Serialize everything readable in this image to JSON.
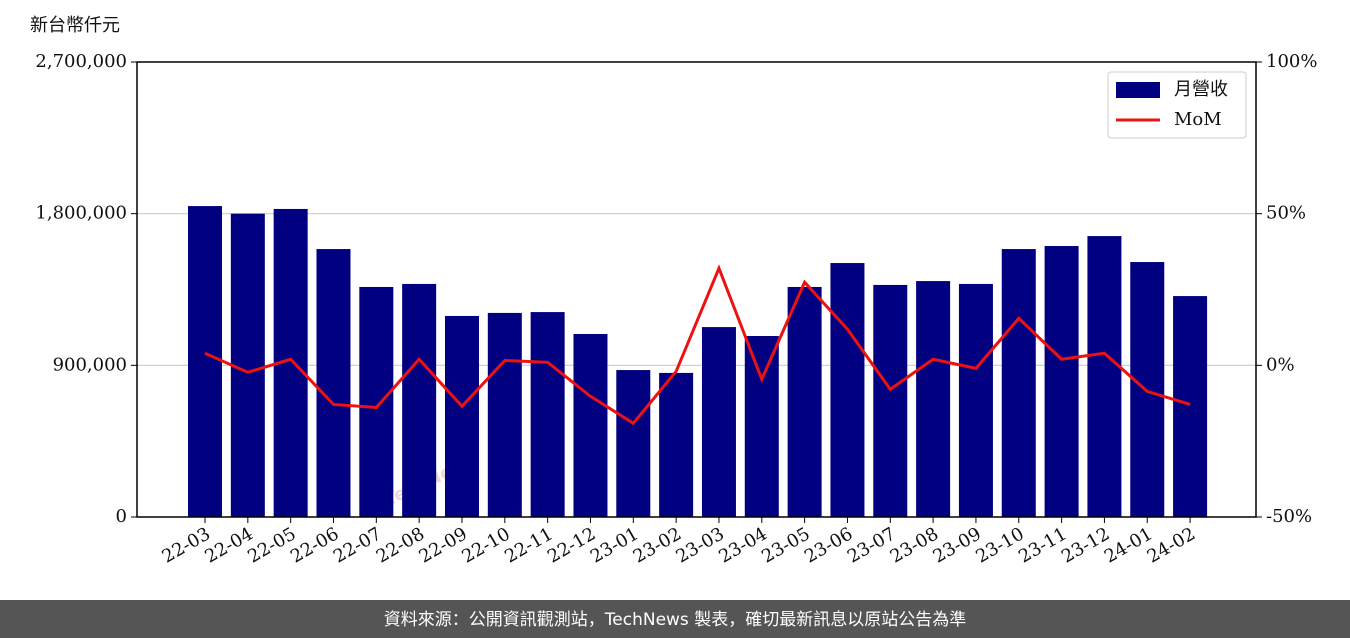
{
  "chart_data": {
    "type": "combo",
    "unit_label": "新台幣仟元",
    "watermark": "TechNews",
    "footer": "資料來源：公開資訊觀測站，TechNews 製表，確切最新訊息以原站公告為準",
    "categories": [
      "22-03",
      "22-04",
      "22-05",
      "22-06",
      "22-07",
      "22-08",
      "22-09",
      "22-10",
      "22-11",
      "22-12",
      "23-01",
      "23-02",
      "23-03",
      "23-04",
      "23-05",
      "23-06",
      "23-07",
      "23-08",
      "23-09",
      "23-10",
      "23-11",
      "23-12",
      "24-01",
      "24-02"
    ],
    "series": [
      {
        "name": "月營收",
        "type": "bar",
        "color": "#000080",
        "axis": "y",
        "values": [
          1845000,
          1800000,
          1828000,
          1590000,
          1365000,
          1383000,
          1193000,
          1211000,
          1216000,
          1086000,
          872000,
          855000,
          1127000,
          1074000,
          1365000,
          1507000,
          1377000,
          1400000,
          1383000,
          1590000,
          1608000,
          1667000,
          1513000,
          1311000
        ]
      },
      {
        "name": "MoM",
        "type": "line",
        "color": "#ee1111",
        "axis": "y2",
        "values": [
          4,
          -2.3,
          2,
          -12.9,
          -13.9,
          2,
          -13.5,
          1.6,
          1,
          -10.2,
          -19.1,
          -2,
          32,
          -4.6,
          27.4,
          11.9,
          -7.9,
          2,
          -1,
          15.5,
          2,
          4,
          -8.6,
          -12.9
        ]
      }
    ],
    "ylim": [
      0,
      2700000
    ],
    "yticks": [
      0,
      {
        "value": 900000,
        "label": "900,000"
      },
      {
        "value": 1800000,
        "label": "1,800,000"
      },
      {
        "value": 2700000,
        "label": "2,700,000"
      }
    ],
    "y2lim": [
      -50,
      100
    ],
    "y2ticks": [
      {
        "value": -50,
        "label": "-50%"
      },
      {
        "value": 0,
        "label": "0%"
      },
      {
        "value": 50,
        "label": "50%"
      },
      {
        "value": 100,
        "label": "100%"
      }
    ],
    "grid": true,
    "legend": "upper-right"
  }
}
